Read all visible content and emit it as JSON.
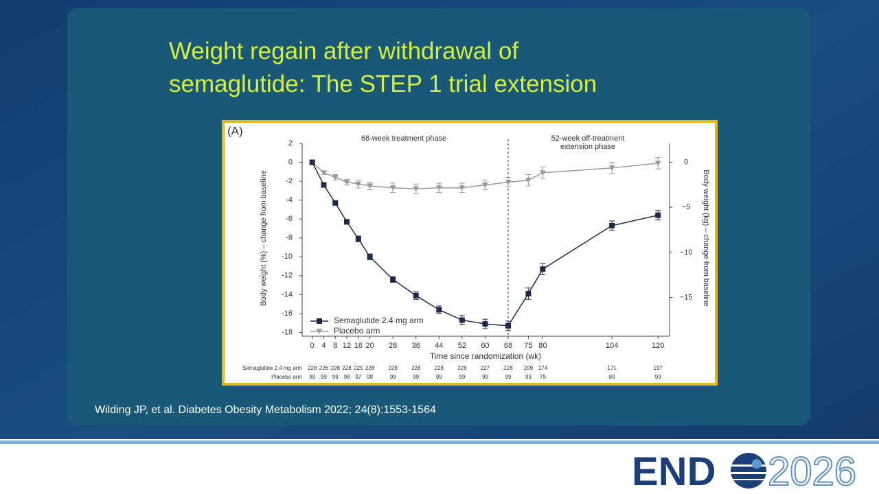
{
  "slide": {
    "title_lines": [
      "Weight regain after withdrawal of",
      "semaglutide: The STEP 1 trial extension"
    ],
    "citation": "Wilding JP, et al. Diabetes Obesity Metabolism 2022; 24(8):1553-1564",
    "logo": {
      "left": "END",
      "right": "2026"
    }
  },
  "chart_data": {
    "type": "line",
    "panel_label": "(A)",
    "xlabel": "Time since randomization (wk)",
    "ylabel": "Body weight (%) – change from baseline",
    "y2label": "Body weight (kg) – change from baseline",
    "annotations": [
      "68-week treatment phase",
      "52-week off-treatment",
      "extension phase"
    ],
    "vline": 68,
    "x": [
      0,
      4,
      8,
      12,
      16,
      20,
      28,
      36,
      44,
      52,
      60,
      68,
      75,
      80,
      104,
      120
    ],
    "xticks": [
      0,
      4,
      8,
      12,
      16,
      20,
      28,
      36,
      44,
      52,
      60,
      68,
      75,
      80,
      104,
      120
    ],
    "xlim": [
      -3.5,
      124
    ],
    "ylim": [
      -18.4,
      2
    ],
    "yticks": [
      2,
      0,
      -2,
      -4,
      -6,
      -8,
      -10,
      -12,
      -14,
      -16,
      -18
    ],
    "y2lim": [
      -19.3,
      2.1
    ],
    "y2ticks": [
      0,
      {
        "value": -5,
        "label": "−5"
      },
      {
        "value": -10,
        "label": "−10"
      },
      {
        "value": -15,
        "label": "−15"
      }
    ],
    "legend": "lower left",
    "series": [
      {
        "name": "Semaglutide 2.4 mg arm",
        "color": "#1f2a4a",
        "marker": "square",
        "values": [
          0,
          -2.4,
          -4.3,
          -6.3,
          -8.1,
          -10.0,
          -12.4,
          -14.1,
          -15.6,
          -16.7,
          -17.1,
          -17.3,
          -13.9,
          -11.3,
          -6.7,
          -5.6
        ],
        "errors": [
          0.1,
          0.2,
          0.2,
          0.2,
          0.3,
          0.3,
          0.3,
          0.4,
          0.4,
          0.5,
          0.5,
          0.5,
          0.6,
          0.6,
          0.5,
          0.5
        ]
      },
      {
        "name": "Placebo arm",
        "color": "#9a9a9a",
        "marker": "triangle-down",
        "values": [
          0,
          -1.1,
          -1.6,
          -2.1,
          -2.3,
          -2.5,
          -2.7,
          -2.8,
          -2.7,
          -2.7,
          -2.4,
          -2.1,
          -1.9,
          -1.1,
          -0.6,
          -0.1
        ],
        "errors": [
          0.1,
          0.2,
          0.3,
          0.3,
          0.4,
          0.4,
          0.5,
          0.5,
          0.5,
          0.5,
          0.5,
          0.5,
          0.6,
          0.6,
          0.6,
          0.6
        ]
      }
    ],
    "at_risk": [
      {
        "name": "Semaglutide 2.4 mg arm",
        "values": [
          228,
          226,
          228,
          228,
          225,
          228,
          228,
          228,
          228,
          228,
          227,
          228,
          209,
          174,
          171,
          197
        ]
      },
      {
        "name": "Placebo arm",
        "values": [
          99,
          99,
          99,
          98,
          97,
          98,
          99,
          99,
          99,
          99,
          99,
          99,
          93,
          79,
          80,
          93
        ]
      }
    ]
  }
}
